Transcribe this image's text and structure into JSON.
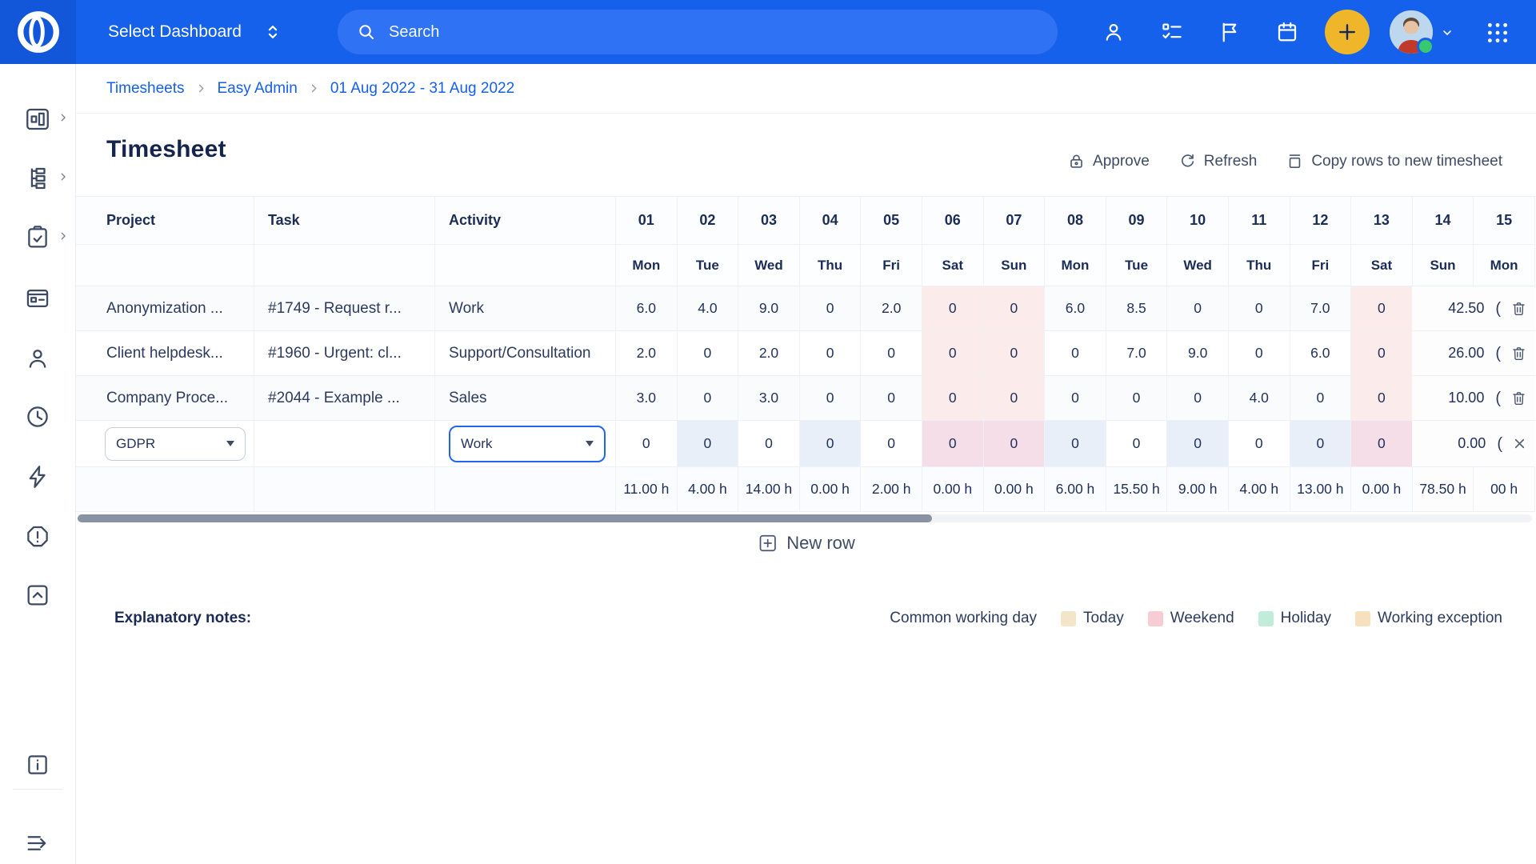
{
  "topbar": {
    "dashboard_selector": "Select Dashboard",
    "search_placeholder": "Search"
  },
  "breadcrumb": {
    "items": [
      "Timesheets",
      "Easy Admin",
      "01 Aug 2022 - 31 Aug 2022"
    ]
  },
  "page_title": "Timesheet",
  "toolbar": {
    "approve": "Approve",
    "refresh": "Refresh",
    "copy": "Copy rows to new timesheet"
  },
  "table": {
    "headers": {
      "project": "Project",
      "task": "Task",
      "activity": "Activity"
    },
    "days": [
      {
        "num": "01",
        "dow": "Mon"
      },
      {
        "num": "02",
        "dow": "Tue"
      },
      {
        "num": "03",
        "dow": "Wed"
      },
      {
        "num": "04",
        "dow": "Thu"
      },
      {
        "num": "05",
        "dow": "Fri"
      },
      {
        "num": "06",
        "dow": "Sat"
      },
      {
        "num": "07",
        "dow": "Sun"
      },
      {
        "num": "08",
        "dow": "Mon"
      },
      {
        "num": "09",
        "dow": "Tue"
      },
      {
        "num": "10",
        "dow": "Wed"
      },
      {
        "num": "11",
        "dow": "Thu"
      },
      {
        "num": "12",
        "dow": "Fri"
      },
      {
        "num": "13",
        "dow": "Sat"
      },
      {
        "num": "14",
        "dow": "Sun"
      },
      {
        "num": "15",
        "dow": "Mon"
      }
    ],
    "weekend_indices": [
      5,
      6,
      12,
      13
    ],
    "row_action_glyph": "(",
    "rows": [
      {
        "project": "Anonymization ...",
        "task": "#1749 - Request r...",
        "activity": "Work",
        "values": [
          "6.0",
          "4.0",
          "9.0",
          "0",
          "2.0",
          "0",
          "0",
          "6.0",
          "8.5",
          "0",
          "0",
          "7.0",
          "0"
        ],
        "total": "42.50"
      },
      {
        "project": "Client helpdesk...",
        "task": "#1960 - Urgent: cl...",
        "activity": "Support/Consultation",
        "values": [
          "2.0",
          "0",
          "2.0",
          "0",
          "0",
          "0",
          "0",
          "0",
          "7.0",
          "9.0",
          "0",
          "6.0",
          "0"
        ],
        "total": "26.00"
      },
      {
        "project": "Company Proce...",
        "task": "#2044 - Example ...",
        "activity": "Sales",
        "values": [
          "3.0",
          "0",
          "3.0",
          "0",
          "0",
          "0",
          "0",
          "0",
          "0",
          "0",
          "4.0",
          "0",
          "0"
        ],
        "total": "10.00"
      }
    ],
    "editable_row": {
      "project_select": "GDPR",
      "activity_select": "Work",
      "values": [
        "0",
        "0",
        "0",
        "0",
        "0",
        "0",
        "0",
        "0",
        "0",
        "0",
        "0",
        "0",
        "0"
      ],
      "total": "0.00"
    },
    "totals": {
      "per_day": [
        "11.00 h",
        "4.00 h",
        "14.00 h",
        "0.00 h",
        "2.00 h",
        "0.00 h",
        "0.00 h",
        "6.00 h",
        "15.50 h",
        "9.00 h",
        "4.00 h",
        "13.00 h",
        "0.00 h"
      ],
      "grand": "78.50 h",
      "clipped": "00 h"
    }
  },
  "new_row_label": "New row",
  "notes": {
    "title": "Explanatory notes:",
    "legend": [
      {
        "label": "Common working day",
        "color": null
      },
      {
        "label": "Today",
        "color": "#f3e6c8"
      },
      {
        "label": "Weekend",
        "color": "#f8ccd5"
      },
      {
        "label": "Holiday",
        "color": "#c0ecdc"
      },
      {
        "label": "Working exception",
        "color": "#f6e0bd"
      }
    ]
  },
  "colors": {
    "topbar_blue": "#1561eb",
    "accent_blue": "#2166ee",
    "weekend_cell": "#fcebeb",
    "plus_button_yellow": "#f0b62a",
    "link_blue": "#1660e9"
  }
}
